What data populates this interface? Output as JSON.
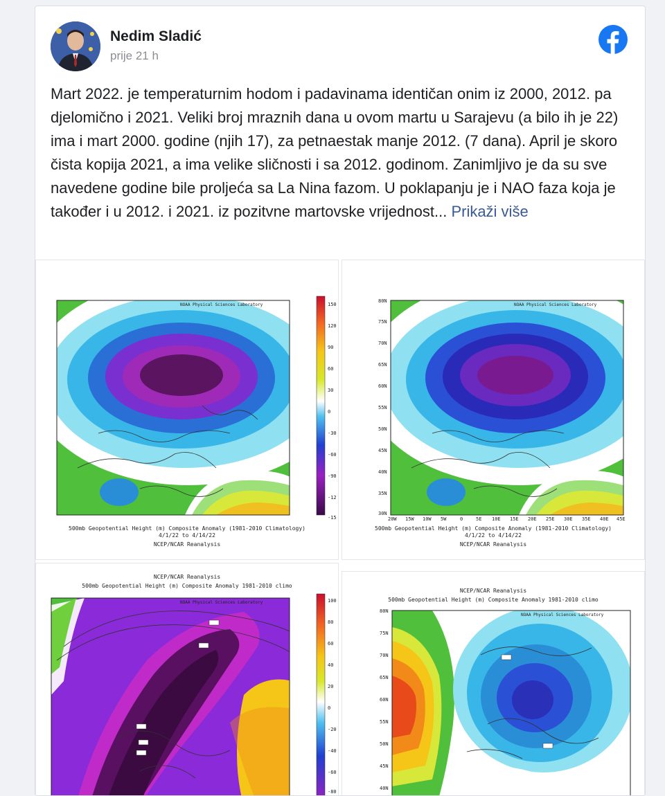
{
  "post": {
    "author": "Nedim Sladić",
    "time": "prije 21 h",
    "body": "Mart 2022. je temperaturnim hodom i padavinama identičan onim iz 2000, 2012. pa djelomično i 2021. Veliki broj mraznih dana u ovom martu u Sarajevu (a bilo ih je 22) ima i mart 2000. godine (njih 17), za petnaestak manje 2012. (7 dana). April je skoro čista kopija 2021, a ima velike sličnosti i sa 2012. godinom. Zanimljivo je da su sve navedene godine bile proljeća sa La Nina fazom. U poklapanju je i NAO faza koja je također i u 2012. i 2021. iz pozitvne martovske vrijednost...",
    "more_label": "Prikaži više",
    "icons": {
      "facebook": "facebook-logo-icon",
      "avatar": "profile-photo"
    },
    "brand_color": "#1877f2"
  },
  "maps": [
    {
      "lab": "NOAA Physical Sciences Laboratory",
      "caption1": "500mb Geopotential Height (m) Composite Anomaly (1981-2010 Climatology)",
      "caption2": "4/1/22 to 4/14/22",
      "caption3": "NCEP/NCAR Reanalysis",
      "scale": [
        "150",
        "120",
        "90",
        "60",
        "30",
        "0",
        "-30",
        "-60",
        "-90",
        "-12",
        "-15"
      ]
    },
    {
      "lab": "NOAA Physical Sciences Laboratory",
      "caption1": "500mb Geopotential Height (m) Composite Anomaly (1981-2010 Climatology)",
      "caption2": "4/1/22 to 4/14/22",
      "caption3": "NCEP/NCAR Reanalysis",
      "lats": [
        "80N",
        "75N",
        "70N",
        "65N",
        "60N",
        "55N",
        "50N",
        "45N",
        "40N",
        "35N",
        "30N"
      ],
      "lons": [
        "20W",
        "15W",
        "10W",
        "5W",
        "0",
        "5E",
        "10E",
        "15E",
        "20E",
        "25E",
        "30E",
        "35E",
        "40E",
        "45E"
      ]
    },
    {
      "title1": "NCEP/NCAR Reanalysis",
      "title2": "500mb Geopotential Height (m) Composite Anomaly 1981-2010 climo",
      "lab": "NOAA Physical Sciences Laboratory",
      "scale": [
        "100",
        "80",
        "60",
        "40",
        "20",
        "0",
        "-20",
        "-40",
        "-60",
        "-80"
      ]
    },
    {
      "title1": "NCEP/NCAR Reanalysis",
      "title2": "500mb Geopotential Height (m) Composite Anomaly 1981-2010 climo",
      "lab": "NOAA Physical Sciences Laboratory",
      "lats": [
        "80N",
        "75N",
        "70N",
        "65N",
        "60N",
        "55N",
        "50N",
        "45N",
        "40N"
      ]
    }
  ]
}
